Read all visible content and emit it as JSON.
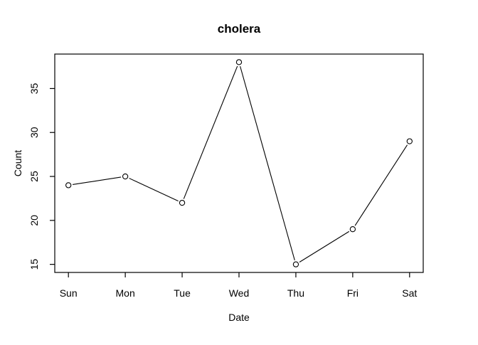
{
  "figure": {
    "background": "#ffffff",
    "foreground": "#000000"
  },
  "chart_data": {
    "type": "line",
    "title": "cholera",
    "xlabel": "Date",
    "ylabel": "Count",
    "categories": [
      "Sun",
      "Mon",
      "Tue",
      "Wed",
      "Thu",
      "Fri",
      "Sat"
    ],
    "values": [
      24,
      25,
      22,
      38,
      15,
      19,
      29
    ],
    "y_ticks": [
      15,
      20,
      25,
      30,
      35
    ],
    "ylim": [
      14.08,
      38.92
    ],
    "xlim": [
      0.76,
      7.24
    ],
    "marker": "open-circle",
    "marker_color": "#000000",
    "line_color": "#000000",
    "grid": false,
    "legend": "none"
  }
}
